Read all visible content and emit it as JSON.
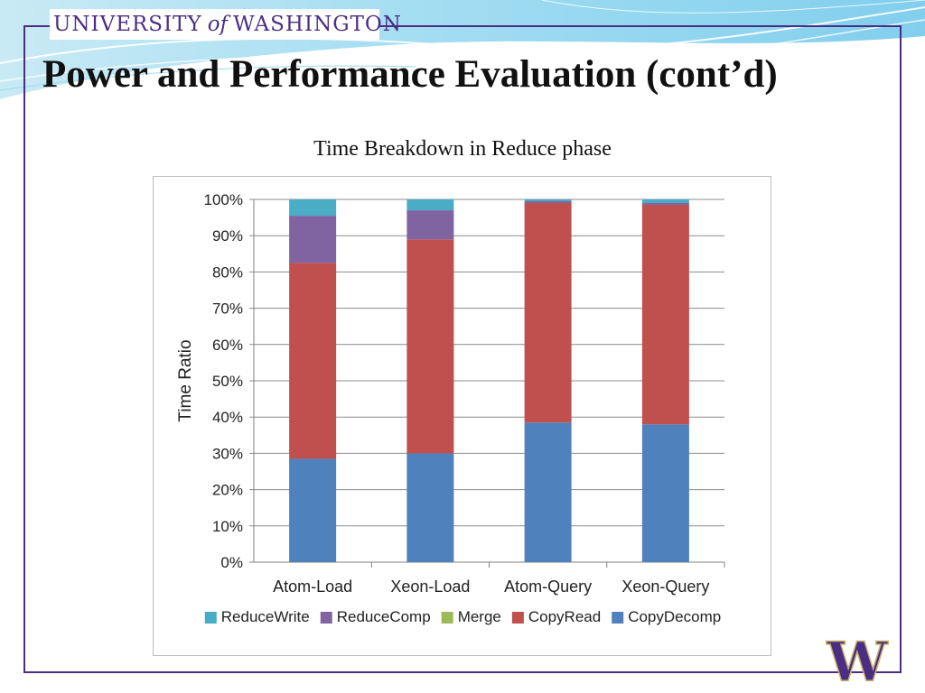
{
  "header": {
    "wordmark_left": "UNIVERSITY",
    "wordmark_of": "of",
    "wordmark_right": "WASHINGTON",
    "title": "Power and Performance Evaluation (cont’d)",
    "logo_letter": "W"
  },
  "colors": {
    "frame": "#4b2e83",
    "ReduceWrite": "#4bacc6",
    "ReduceComp": "#8064a2",
    "Merge": "#9bbb59",
    "CopyRead": "#c0504d",
    "CopyDecomp": "#4f81bd"
  },
  "chart_data": {
    "type": "bar",
    "stacked": true,
    "title": "Time Breakdown in Reduce phase",
    "xlabel": "",
    "ylabel": "Time Ratio",
    "ylim": [
      0,
      100
    ],
    "yticks": [
      "0%",
      "10%",
      "20%",
      "30%",
      "40%",
      "50%",
      "60%",
      "70%",
      "80%",
      "90%",
      "100%"
    ],
    "grid": true,
    "legend_position": "bottom",
    "categories": [
      "Atom-Load",
      "Xeon-Load",
      "Atom-Query",
      "Xeon-Query"
    ],
    "series": [
      {
        "name": "CopyDecomp",
        "values": [
          28.5,
          30,
          38.5,
          38
        ]
      },
      {
        "name": "CopyRead",
        "values": [
          54,
          59,
          60.5,
          60.5
        ]
      },
      {
        "name": "Merge",
        "values": [
          0,
          0,
          0,
          0
        ]
      },
      {
        "name": "ReduceComp",
        "values": [
          13,
          8,
          0.5,
          0.5
        ]
      },
      {
        "name": "ReduceWrite",
        "values": [
          4.5,
          3,
          0.5,
          1
        ]
      }
    ],
    "legend_order": [
      "ReduceWrite",
      "ReduceComp",
      "Merge",
      "CopyRead",
      "CopyDecomp"
    ]
  }
}
